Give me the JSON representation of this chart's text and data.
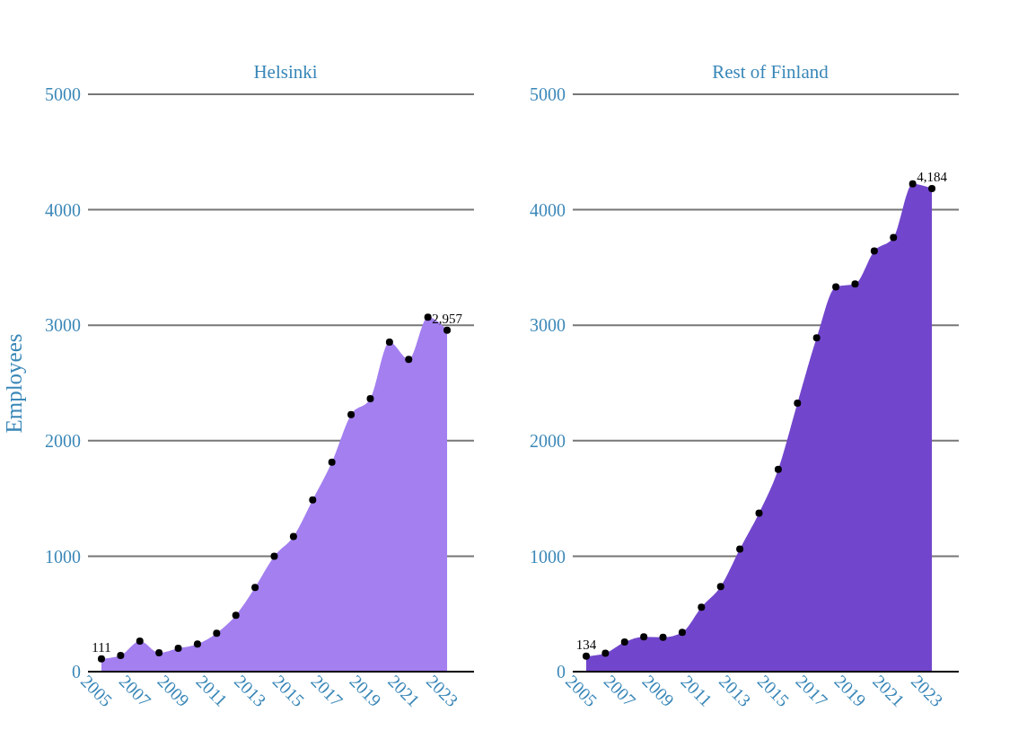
{
  "chart_data": [
    {
      "type": "area",
      "title": "Helsinki",
      "ylabel": "Employees",
      "x": [
        2005,
        2006,
        2007,
        2008,
        2009,
        2010,
        2011,
        2012,
        2013,
        2014,
        2015,
        2016,
        2017,
        2018,
        2019,
        2020,
        2021,
        2022,
        2023
      ],
      "series": [
        {
          "color": "#a37ff0",
          "values": [
            111,
            140,
            264,
            163,
            202,
            240,
            333,
            488,
            729,
            1000,
            1170,
            1488,
            1814,
            2225,
            2364,
            2853,
            2705,
            3070,
            2957
          ],
          "value_labels": [
            "111",
            null,
            null,
            null,
            null,
            null,
            null,
            null,
            null,
            null,
            null,
            null,
            null,
            null,
            null,
            null,
            null,
            null,
            "2,957"
          ]
        }
      ],
      "xlim": [
        2004.3,
        2024.4
      ],
      "xticks": [
        2005,
        2007,
        2009,
        2011,
        2013,
        2015,
        2017,
        2019,
        2021,
        2023
      ],
      "ylim": [
        0,
        5000
      ],
      "yticks": [
        0,
        1000,
        2000,
        3000,
        4000,
        5000
      ],
      "grid": "y",
      "marker": "circle",
      "legend": false
    },
    {
      "type": "area",
      "title": "Rest of Finland",
      "x": [
        2005,
        2006,
        2007,
        2008,
        2009,
        2010,
        2011,
        2012,
        2013,
        2014,
        2015,
        2016,
        2017,
        2018,
        2019,
        2020,
        2021,
        2022,
        2023
      ],
      "series": [
        {
          "color": "#7246cc",
          "values": [
            134,
            160,
            256,
            302,
            298,
            341,
            558,
            736,
            1062,
            1372,
            1752,
            2326,
            2891,
            3333,
            3357,
            3643,
            3760,
            4225,
            4184
          ],
          "value_labels": [
            "134",
            null,
            null,
            null,
            null,
            null,
            null,
            null,
            null,
            null,
            null,
            null,
            null,
            null,
            null,
            null,
            null,
            null,
            "4,184"
          ]
        }
      ],
      "xlim": [
        2004.3,
        2024.4
      ],
      "xticks": [
        2005,
        2007,
        2009,
        2011,
        2013,
        2015,
        2017,
        2019,
        2021,
        2023
      ],
      "ylim": [
        0,
        5000
      ],
      "yticks": [
        0,
        1000,
        2000,
        3000,
        4000,
        5000
      ],
      "grid": "y",
      "marker": "circle",
      "legend": false
    }
  ]
}
